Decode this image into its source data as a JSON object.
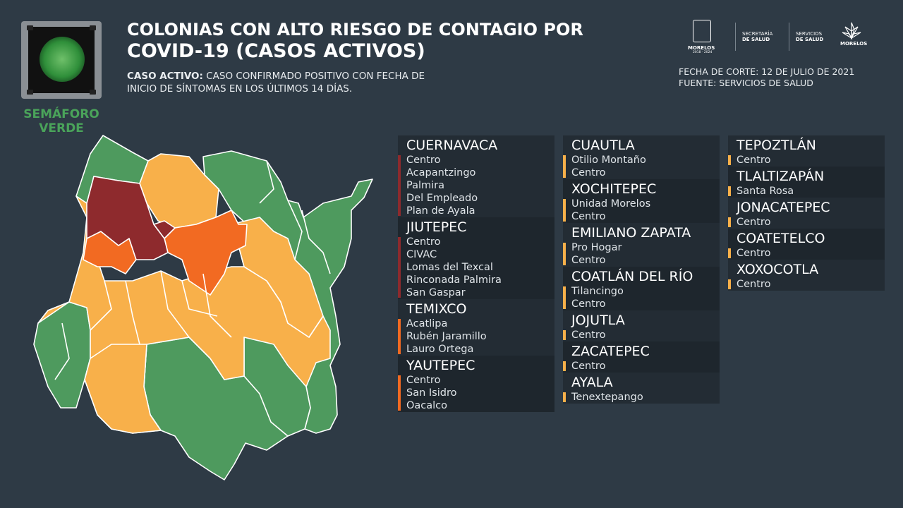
{
  "semaforo": {
    "line1": "SEMÁFORO",
    "line2": "VERDE",
    "color": "#4aa35a"
  },
  "header": {
    "title_line1": "COLONIAS CON ALTO RIESGO DE CONTAGIO POR",
    "title_line2": "COVID-19 (CASOS ACTIVOS)",
    "caso_label": "CASO ACTIVO:",
    "caso_text1": " CASO CONFIRMADO POSITIVO CON FECHA DE",
    "caso_text2": "INICIO DE SÍNTOMAS EN LOS ÚLTIMOS 14 DÍAS.",
    "fecha": "FECHA DE CORTE: 12 DE JULIO DE 2021",
    "fuente": "FUENTE: SERVICIOS DE SALUD"
  },
  "logos": {
    "morelos_seal": "MORELOS",
    "morelos_years": "2018 - 2024",
    "secretaria_1": "SECRETARÍA",
    "secretaria_2": "DE SALUD",
    "servicios_1": "SERVICIOS",
    "servicios_2": "DE SALUD",
    "morelos_brand": "MORELOS"
  },
  "colors": {
    "red": "#8e2a2d",
    "orange": "#f26a22",
    "yellow": "#f8b04a",
    "green": "#4e9a5e",
    "bg": "#2e3a45"
  },
  "municipalities": [
    {
      "name": "CUERNAVACA",
      "risk": "red",
      "colonias": [
        "Centro",
        "Acapantzingo",
        "Palmira",
        "Del Empleado",
        "Plan de Ayala"
      ]
    },
    {
      "name": "JIUTEPEC",
      "risk": "red",
      "colonias": [
        "Centro",
        "CIVAC",
        "Lomas del Texcal",
        "Rinconada Palmira",
        "San Gaspar"
      ]
    },
    {
      "name": "TEMIXCO",
      "risk": "orange",
      "colonias": [
        "Acatlipa",
        "Rubén Jaramillo",
        "Lauro Ortega"
      ]
    },
    {
      "name": "YAUTEPEC",
      "risk": "orange",
      "colonias": [
        "Centro",
        "San Isidro",
        "Oacalco"
      ]
    },
    {
      "name": "CUAUTLA",
      "risk": "yellow",
      "colonias": [
        "Otilio Montaño",
        "Centro"
      ]
    },
    {
      "name": "XOCHITEPEC",
      "risk": "yellow",
      "colonias": [
        "Unidad Morelos",
        "Centro"
      ]
    },
    {
      "name": "EMILIANO ZAPATA",
      "risk": "yellow",
      "colonias": [
        "Pro Hogar",
        "Centro"
      ]
    },
    {
      "name": "COATLÁN DEL RÍO",
      "risk": "yellow",
      "colonias": [
        "Tilancingo",
        "Centro"
      ]
    },
    {
      "name": "JOJUTLA",
      "risk": "yellow",
      "colonias": [
        "Centro"
      ]
    },
    {
      "name": "ZACATEPEC",
      "risk": "yellow",
      "colonias": [
        "Centro"
      ]
    },
    {
      "name": "AYALA",
      "risk": "yellow",
      "colonias": [
        "Tenextepango"
      ]
    },
    {
      "name": "TEPOZTLÁN",
      "risk": "yellow",
      "colonias": [
        "Centro"
      ]
    },
    {
      "name": "TLALTIZAPÁN",
      "risk": "yellow",
      "colonias": [
        "Santa Rosa"
      ]
    },
    {
      "name": "JONACATEPEC",
      "risk": "yellow",
      "colonias": [
        "Centro"
      ]
    },
    {
      "name": "COATETELCO",
      "risk": "yellow",
      "colonias": [
        "Centro"
      ]
    },
    {
      "name": "XOXOCOTLA",
      "risk": "yellow",
      "colonias": [
        "Centro"
      ]
    }
  ]
}
